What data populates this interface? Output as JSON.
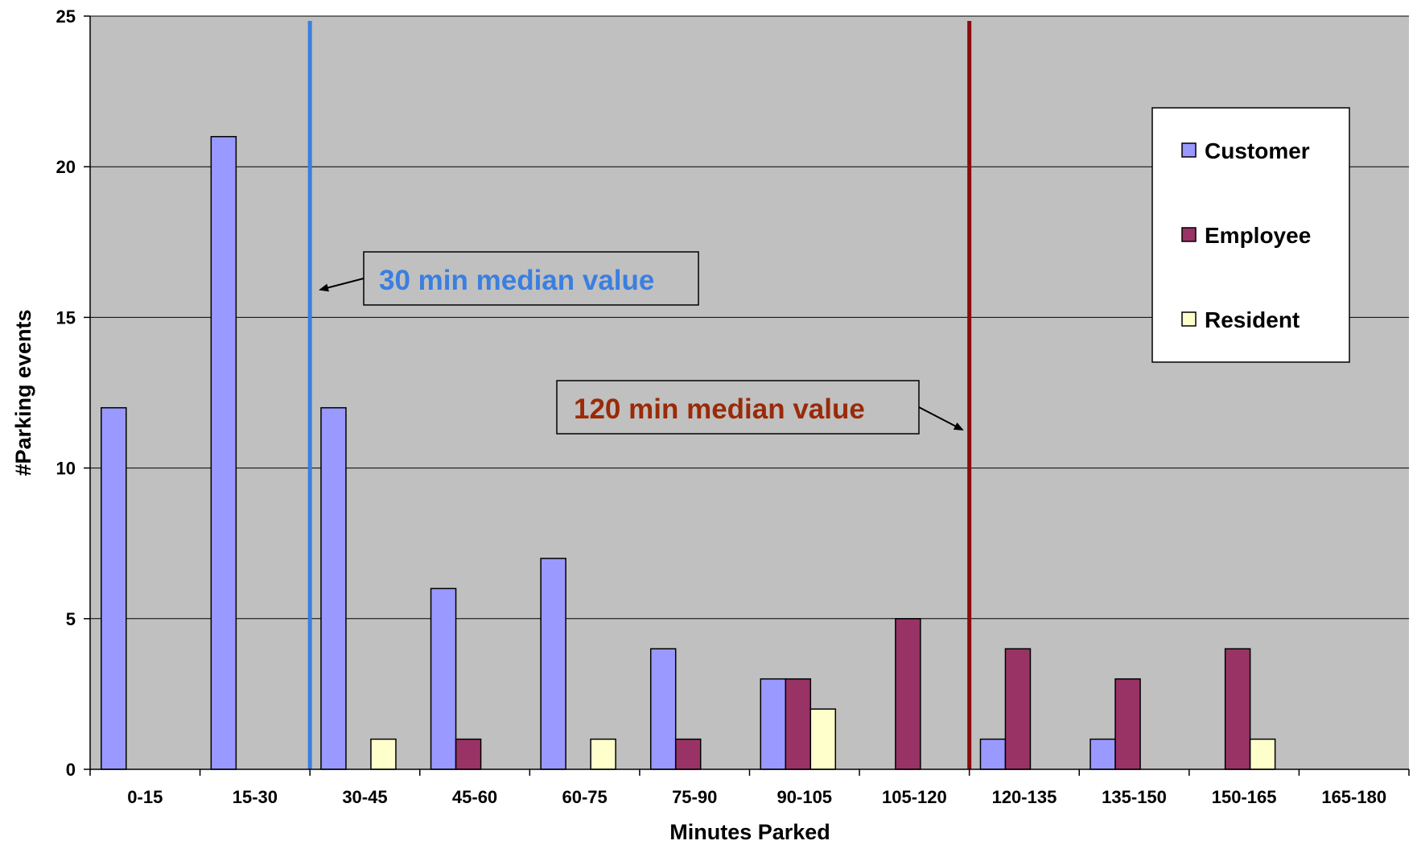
{
  "chart_data": {
    "type": "bar",
    "title": "",
    "xlabel": "Minutes Parked",
    "ylabel": "#Parking events",
    "ylim": [
      0,
      25
    ],
    "yticks": [
      0,
      5,
      10,
      15,
      20,
      25
    ],
    "grid": true,
    "legend_position": "top-right",
    "categories": [
      "0-15",
      "15-30",
      "30-45",
      "45-60",
      "60-75",
      "75-90",
      "90-105",
      "105-120",
      "120-135",
      "135-150",
      "150-165",
      "165-180"
    ],
    "series": [
      {
        "name": "Customer",
        "color": "#9999ff",
        "values": [
          12,
          21,
          12,
          6,
          7,
          4,
          3,
          0,
          1,
          1,
          0,
          0
        ]
      },
      {
        "name": "Employee",
        "color": "#993366",
        "values": [
          0,
          0,
          0,
          1,
          0,
          1,
          3,
          5,
          4,
          3,
          4,
          0
        ]
      },
      {
        "name": "Resident",
        "color": "#ffffcc",
        "values": [
          0,
          0,
          1,
          0,
          1,
          0,
          2,
          0,
          0,
          0,
          1,
          0
        ]
      }
    ],
    "reference_lines": [
      {
        "x_minutes": 30,
        "color": "#3a7fe0",
        "label": "30 min median value",
        "label_color": "#3a7fe0"
      },
      {
        "x_minutes": 120,
        "color": "#8b0a0a",
        "label": "120 min median value",
        "label_color": "#9a2a08"
      }
    ],
    "colors": {
      "plot_background": "#c0c0c0",
      "gridline": "#000000"
    }
  }
}
